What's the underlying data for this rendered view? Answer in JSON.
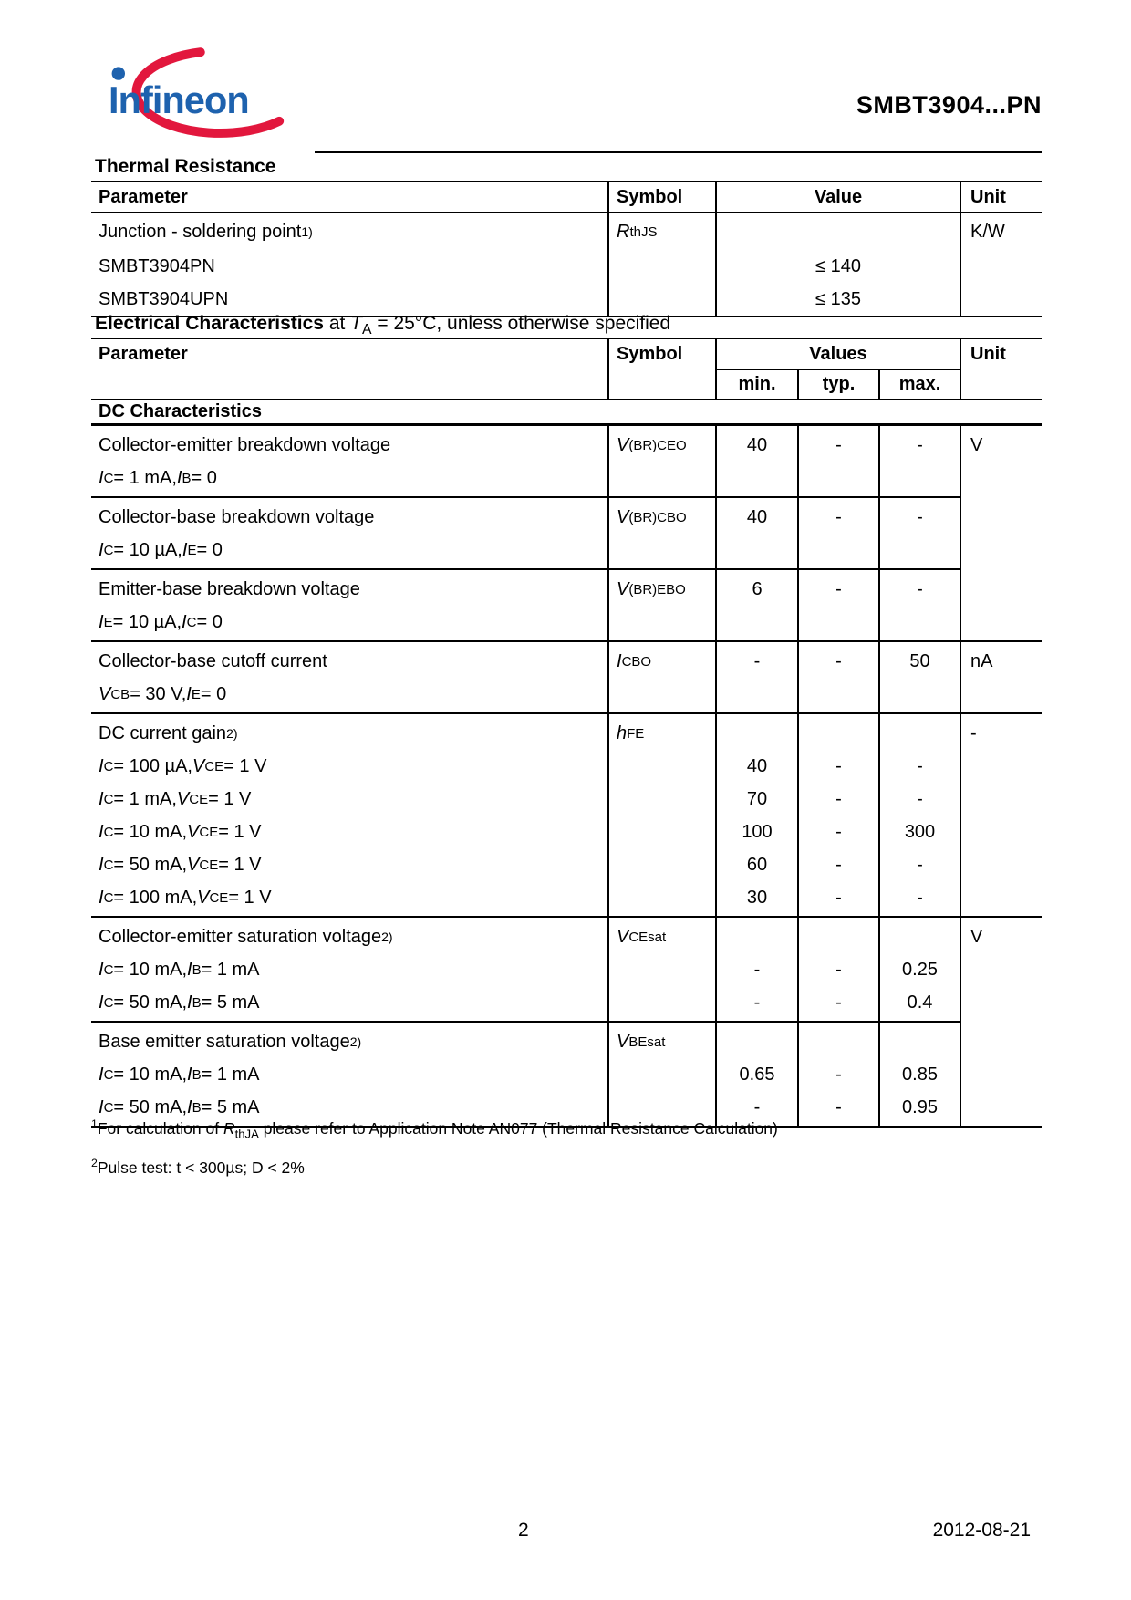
{
  "header": {
    "brand": "Infineon",
    "title": "SMBT3904...PN",
    "brand_blue": "#1E62AE",
    "brand_red": "#E2173D"
  },
  "thermal": {
    "heading": "Thermal Resistance",
    "columns": {
      "parameter": "Parameter",
      "symbol": "Symbol",
      "value": "Value",
      "unit": "Unit"
    },
    "rows": [
      {
        "param_html": "Junction - soldering point<sup>1)</sup>",
        "symbol_html": "<i>R</i><sub>thJS</sub>",
        "value": "",
        "unit": "K/W"
      },
      {
        "param_html": "SMBT3904PN",
        "value": "≤ 140"
      },
      {
        "param_html": "SMBT3904UPN",
        "value": "≤ 135"
      }
    ]
  },
  "electrical": {
    "heading_bold": "Electrical Characteristics",
    "heading_rest_html": " at <i>T</i><sub>A</sub> = 25°C, unless otherwise specified",
    "columns": {
      "parameter": "Parameter",
      "symbol": "Symbol",
      "values": "Values",
      "min": "min.",
      "typ": "typ.",
      "max": "max.",
      "unit": "Unit"
    },
    "section_title": "DC Characteristics",
    "groups": [
      {
        "symbol_html": "<i>V</i><sub>(BR)CEO</sub>",
        "unit": "V",
        "lines": [
          {
            "p": "Collector-emitter breakdown voltage",
            "min": "40",
            "typ": "-",
            "max": "-"
          },
          {
            "p": "<i>I</i><sub>C</sub> = 1 mA, <i>I</i><sub>B</sub> = 0"
          }
        ]
      },
      {
        "symbol_html": "<i>V</i><sub>(BR)CBO</sub>",
        "unit": "",
        "lines": [
          {
            "p": "Collector-base breakdown voltage",
            "min": "40",
            "typ": "-",
            "max": "-"
          },
          {
            "p": "<i>I</i><sub>C</sub> = 10 µA, <i>I</i><sub>E</sub> = 0"
          }
        ]
      },
      {
        "symbol_html": "<i>V</i><sub>(BR)EBO</sub>",
        "unit": "",
        "lines": [
          {
            "p": "Emitter-base breakdown voltage",
            "min": "6",
            "typ": "-",
            "max": "-"
          },
          {
            "p": "<i>I</i><sub>E</sub> = 10 µA, <i>I</i><sub>C</sub> = 0"
          }
        ]
      },
      {
        "symbol_html": "<i>I</i><sub>CBO</sub>",
        "unit": "nA",
        "lines": [
          {
            "p": "Collector-base cutoff current",
            "min": "-",
            "typ": "-",
            "max": "50"
          },
          {
            "p": "<i>V</i><sub>CB</sub> = 30 V, <i>I</i><sub>E</sub> = 0"
          }
        ]
      },
      {
        "symbol_html": "<i>h</i><sub>FE</sub>",
        "unit": "-",
        "lines": [
          {
            "p": "DC current gain<sup>2)</sup>"
          },
          {
            "p": "<i>I</i><sub>C</sub> = 100 µA, <i>V</i><sub>CE</sub> = 1 V",
            "min": "40",
            "typ": "-",
            "max": "-"
          },
          {
            "p": "<i>I</i><sub>C</sub> = 1 mA, <i>V</i><sub>CE</sub> = 1 V",
            "min": "70",
            "typ": "-",
            "max": "-"
          },
          {
            "p": "<i>I</i><sub>C</sub> = 10 mA, <i>V</i><sub>CE</sub> = 1 V",
            "min": "100",
            "typ": "-",
            "max": "300"
          },
          {
            "p": "<i>I</i><sub>C</sub> = 50 mA, <i>V</i><sub>CE</sub> = 1 V",
            "min": "60",
            "typ": "-",
            "max": "-"
          },
          {
            "p": "<i>I</i><sub>C</sub> = 100 mA, <i>V</i><sub>CE</sub> = 1 V",
            "min": "30",
            "typ": "-",
            "max": "-"
          }
        ]
      },
      {
        "symbol_html": "<i>V</i><sub>CEsat</sub>",
        "unit": "V",
        "lines": [
          {
            "p": "Collector-emitter saturation voltage<sup>2)</sup>"
          },
          {
            "p": "<i>I</i><sub>C</sub> = 10 mA, <i>I</i><sub>B</sub> = 1 mA",
            "min": "-",
            "typ": "-",
            "max": "0.25"
          },
          {
            "p": "<i>I</i><sub>C</sub> = 50 mA, <i>I</i><sub>B</sub> = 5 mA",
            "min": "-",
            "typ": "-",
            "max": "0.4"
          }
        ]
      },
      {
        "symbol_html": "<i>V</i><sub>BEsat</sub>",
        "unit": "",
        "lines": [
          {
            "p": "Base emitter saturation voltage<sup>2)</sup>"
          },
          {
            "p": "<i>I</i><sub>C</sub> = 10 mA, <i>I</i><sub>B</sub> = 1 mA",
            "min": "0.65",
            "typ": "-",
            "max": "0.85"
          },
          {
            "p": "<i>I</i><sub>C</sub> = 50 mA, <i>I</i><sub>B</sub> = 5 mA",
            "min": "-",
            "typ": "-",
            "max": "0.95"
          }
        ]
      }
    ]
  },
  "footnotes": [
    {
      "html": "<sup>1</sup>For calculation of <i>R</i><sub>thJA</sub> please refer to Application Note AN077 (Thermal Resistance Calculation)"
    },
    {
      "html": "<sup>2</sup>Pulse test: t &lt; 300µs; D &lt; 2%"
    }
  ],
  "footer": {
    "page": "2",
    "date": "2012-08-21"
  }
}
